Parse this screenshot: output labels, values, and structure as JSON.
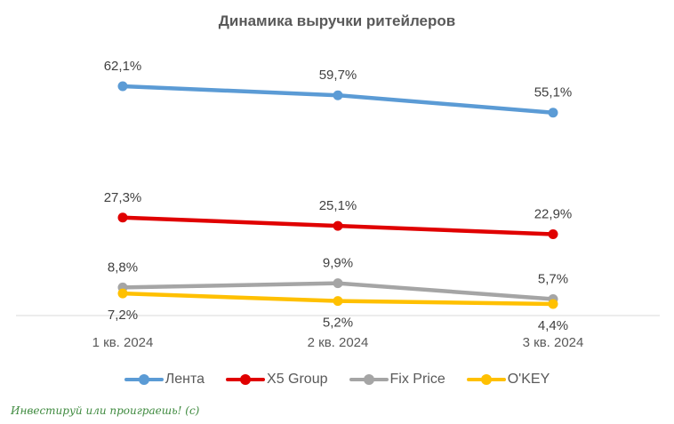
{
  "chart_data": {
    "type": "line",
    "title": "Динамика выручки ритейлеров",
    "categories": [
      "1 кв. 2024",
      "2 кв. 2024",
      "3 кв. 2024"
    ],
    "series": [
      {
        "name": "Лента",
        "values": [
          62.1,
          59.7,
          55.1
        ],
        "labels": [
          "62,1%",
          "59,7%",
          "55,1%"
        ],
        "color": "#5b9bd5",
        "label_position": "above"
      },
      {
        "name": "X5 Group",
        "values": [
          27.3,
          25.1,
          22.9
        ],
        "labels": [
          "27,3%",
          "25,1%",
          "22,9%"
        ],
        "color": "#e00000",
        "label_position": "above"
      },
      {
        "name": "Fix Price",
        "values": [
          8.8,
          9.9,
          5.7
        ],
        "labels": [
          "8,8%",
          "9,9%",
          "5,7%"
        ],
        "color": "#a5a5a5",
        "label_position": "above"
      },
      {
        "name": "O'KEY",
        "values": [
          7.2,
          5.2,
          4.4
        ],
        "labels": [
          "7,2%",
          "5,2%",
          "4,4%"
        ],
        "color": "#ffc000",
        "label_position": "below"
      }
    ],
    "ylim": [
      0,
      65
    ],
    "grid": false,
    "legend_position": "bottom"
  },
  "watermark": "Инвестируй или проиграешь! (с)"
}
